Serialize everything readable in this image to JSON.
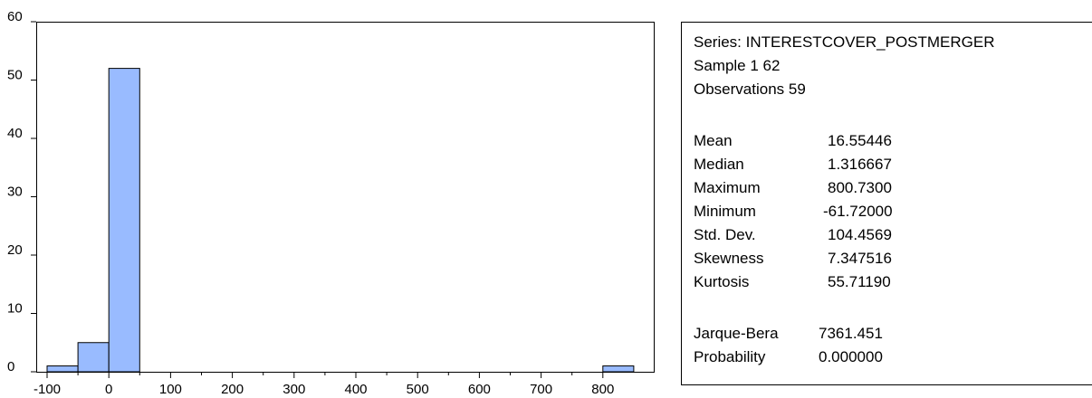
{
  "chart_data": {
    "type": "bar",
    "title": "",
    "xlabel": "",
    "ylabel": "",
    "bins": [
      {
        "from": -100,
        "to": -50,
        "count": 1
      },
      {
        "from": -50,
        "to": 0,
        "count": 5
      },
      {
        "from": 0,
        "to": 50,
        "count": 52
      },
      {
        "from": 50,
        "to": 100,
        "count": 0
      },
      {
        "from": 100,
        "to": 150,
        "count": 0
      },
      {
        "from": 150,
        "to": 200,
        "count": 0
      },
      {
        "from": 200,
        "to": 250,
        "count": 0
      },
      {
        "from": 250,
        "to": 300,
        "count": 0
      },
      {
        "from": 300,
        "to": 350,
        "count": 0
      },
      {
        "from": 350,
        "to": 400,
        "count": 0
      },
      {
        "from": 400,
        "to": 450,
        "count": 0
      },
      {
        "from": 450,
        "to": 500,
        "count": 0
      },
      {
        "from": 500,
        "to": 550,
        "count": 0
      },
      {
        "from": 550,
        "to": 600,
        "count": 0
      },
      {
        "from": 600,
        "to": 650,
        "count": 0
      },
      {
        "from": 650,
        "to": 700,
        "count": 0
      },
      {
        "from": 700,
        "to": 750,
        "count": 0
      },
      {
        "from": 750,
        "to": 800,
        "count": 0
      },
      {
        "from": 800,
        "to": 850,
        "count": 1
      }
    ],
    "xlim": [
      -100,
      850
    ],
    "ylim": [
      0,
      60
    ],
    "x_ticks": [
      -100,
      0,
      100,
      200,
      300,
      400,
      500,
      600,
      700,
      800
    ],
    "x_minor_ticks": [
      -50,
      50,
      150,
      250,
      350,
      450,
      550,
      650,
      750
    ],
    "y_ticks": [
      0,
      10,
      20,
      30,
      40,
      50,
      60
    ],
    "grid": false,
    "legend": "none",
    "bar_color": "#99bbff",
    "edge_color": "#000000"
  },
  "stats": {
    "series": "Series: INTERESTCOVER_POSTMERGER",
    "sample": "Sample 1 62",
    "observations": "Observations 59",
    "rows": [
      {
        "label": "Mean",
        "value": "16.55446"
      },
      {
        "label": "Median",
        "value": "1.316667"
      },
      {
        "label": "Maximum",
        "value": "800.7300"
      },
      {
        "label": "Minimum",
        "value": "-61.72000"
      },
      {
        "label": "Std. Dev.",
        "value": "104.4569"
      },
      {
        "label": "Skewness",
        "value": "7.347516"
      },
      {
        "label": "Kurtosis",
        "value": "55.71190"
      }
    ],
    "tests": [
      {
        "label": "Jarque-Bera",
        "value": "7361.451"
      },
      {
        "label": "Probability",
        "value": "0.000000"
      }
    ]
  }
}
